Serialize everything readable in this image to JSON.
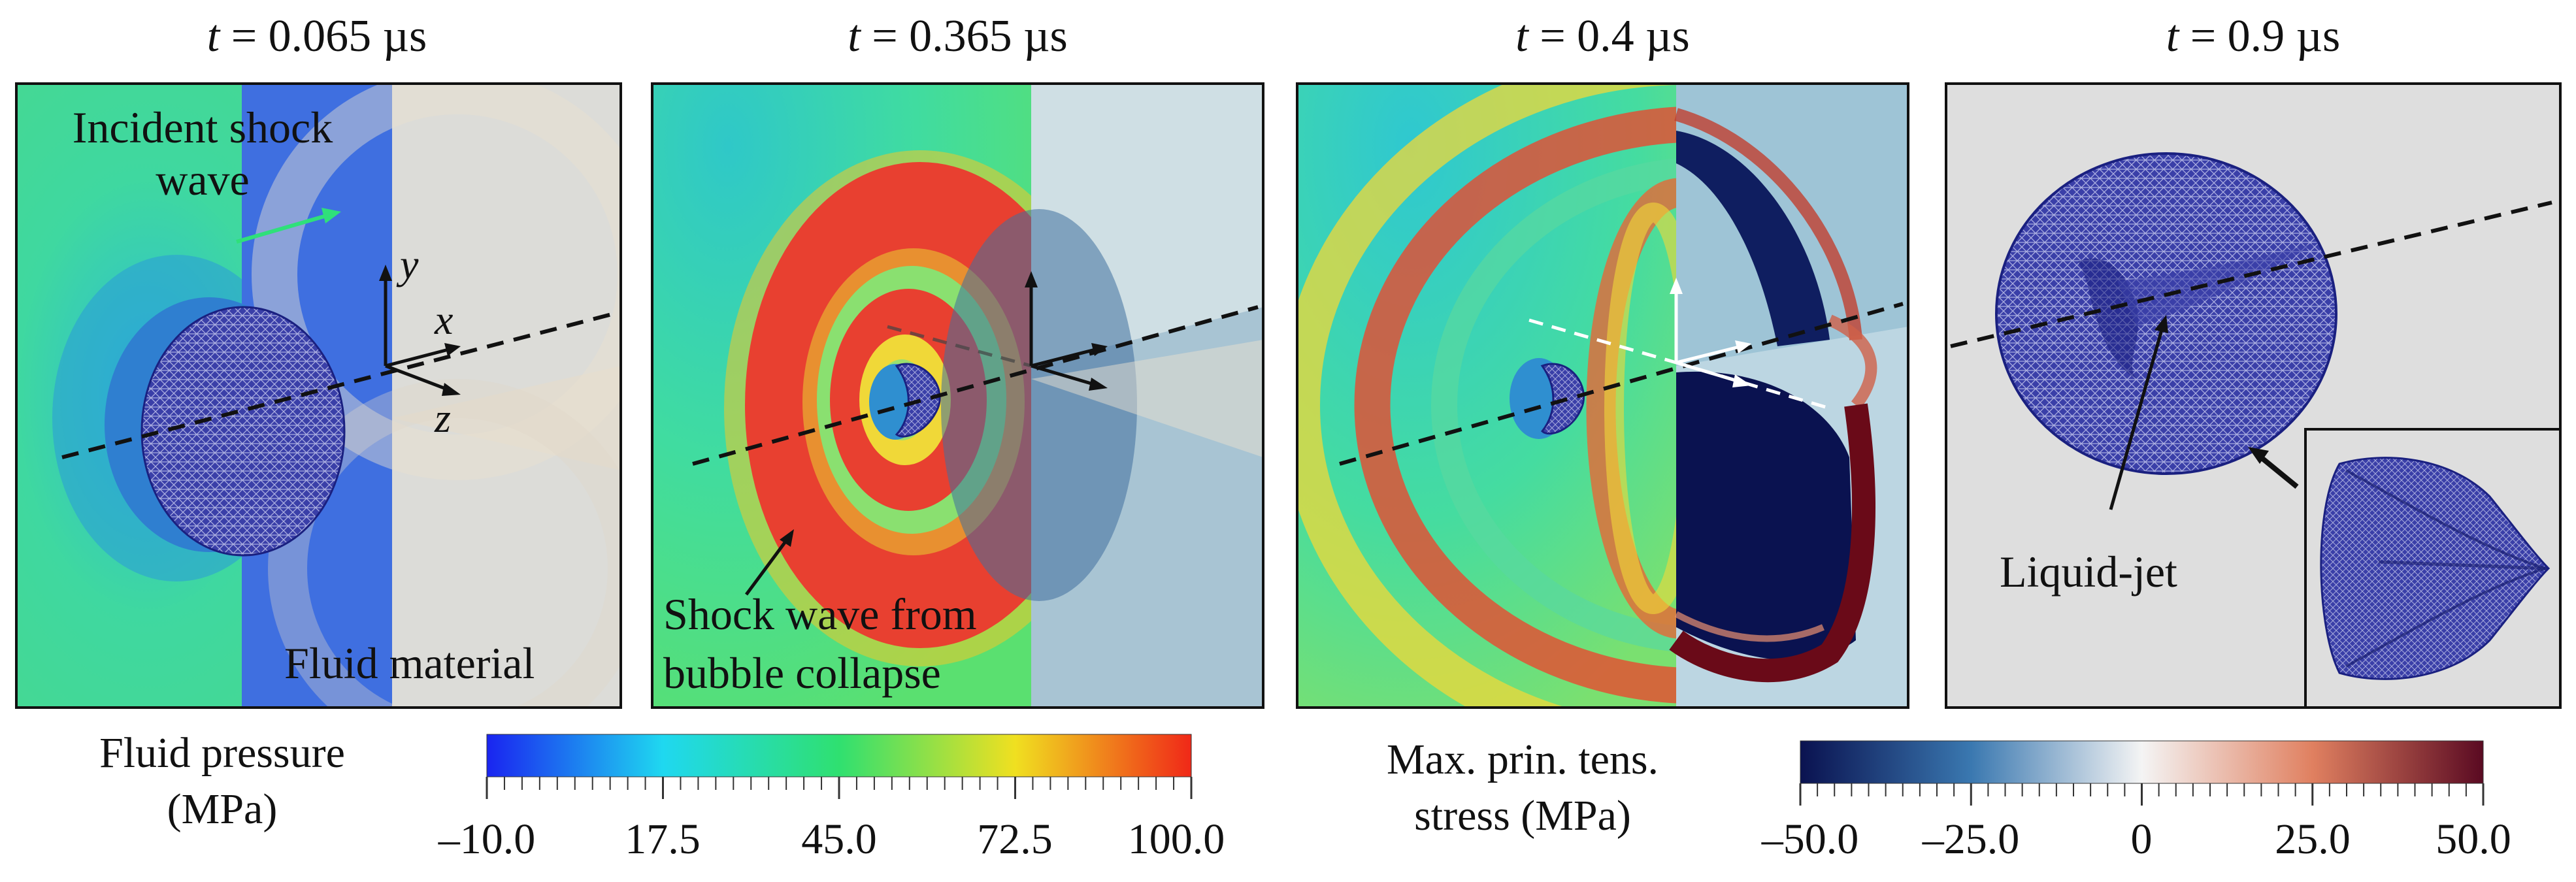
{
  "panels": [
    {
      "time_var": "t",
      "time_rest": " = 0.065 µs"
    },
    {
      "time_var": "t",
      "time_rest": " = 0.365 µs"
    },
    {
      "time_var": "t",
      "time_rest": " = 0.4 µs"
    },
    {
      "time_var": "t",
      "time_rest": " = 0.9 µs"
    }
  ],
  "annotations": {
    "incident_line1": "Incident shock",
    "incident_line2": "wave",
    "axis_y": "y",
    "axis_x": "x",
    "axis_z": "z",
    "fluid_material": "Fluid material",
    "shock_line1": "Shock wave from",
    "shock_line2": "bubble collapse",
    "liquid_jet": "Liquid-jet"
  },
  "colorbars": {
    "pressure": {
      "title_line1": "Fluid pressure",
      "title_line2": "(MPa)",
      "ticks": [
        "–10.0",
        "17.5",
        "45.0",
        "72.5",
        "100.0"
      ],
      "range": [
        -10,
        100
      ]
    },
    "stress": {
      "title_line1": "Max. prin. tens.",
      "title_line2": "stress (MPa)",
      "ticks": [
        "–50.0",
        "–25.0",
        "0",
        "25.0",
        "50.0"
      ],
      "range": [
        -50,
        50
      ]
    }
  },
  "colors": {
    "bubble": "#2a2f9a",
    "arrow_green": "#2fe07a",
    "shock_blue": "#3f6fe0",
    "fluid_green": "#3fd8a0",
    "ring_red": "#e84030",
    "stress_dark": "#0a1250",
    "stress_red": "#7a0a18",
    "panel_bg": "#dedede"
  }
}
